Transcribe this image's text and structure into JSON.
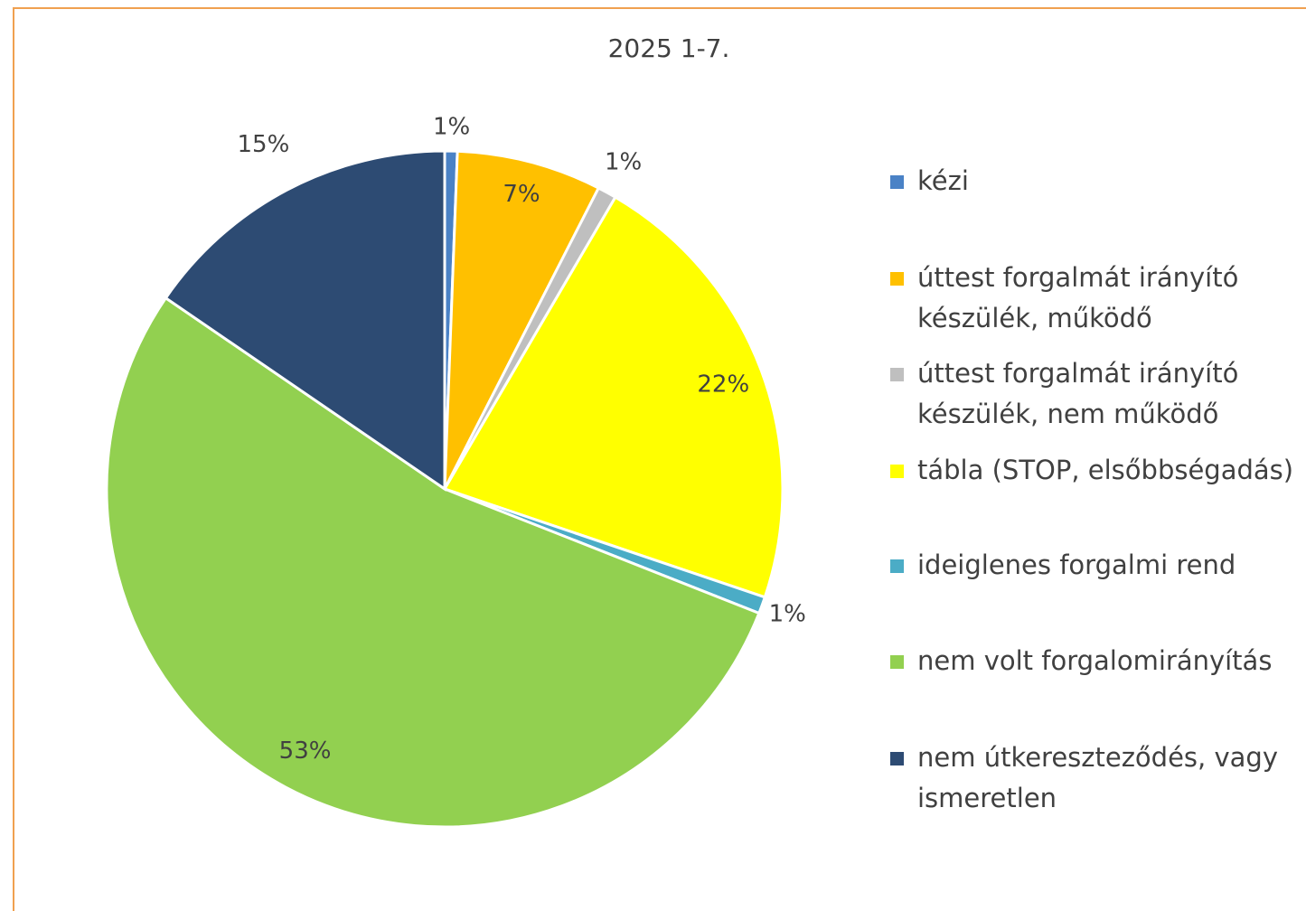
{
  "chart_data": {
    "type": "pie",
    "title": "2025 1-7.",
    "categories": [
      "kézi",
      "úttest forgalmát irányító készülék, működő",
      "úttest forgalmát irányító készülék, nem működő",
      "tábla (STOP, elsőbbségadás)",
      "ideiglenes forgalmi rend",
      "nem volt forgalomirányítás",
      "nem útkereszteződés, vagy ismeretlen"
    ],
    "values": [
      0.6,
      6.9,
      0.9,
      21.7,
      0.8,
      53.4,
      15.4
    ],
    "value_labels": [
      "1%",
      "7%",
      "1%",
      "22%",
      "1%",
      "53%",
      "15%"
    ],
    "colors": [
      "#4a82c6",
      "#ffc000",
      "#bfbfbf",
      "#ffff00",
      "#4bacc6",
      "#92d050",
      "#2d4b73"
    ],
    "legend": "right"
  }
}
